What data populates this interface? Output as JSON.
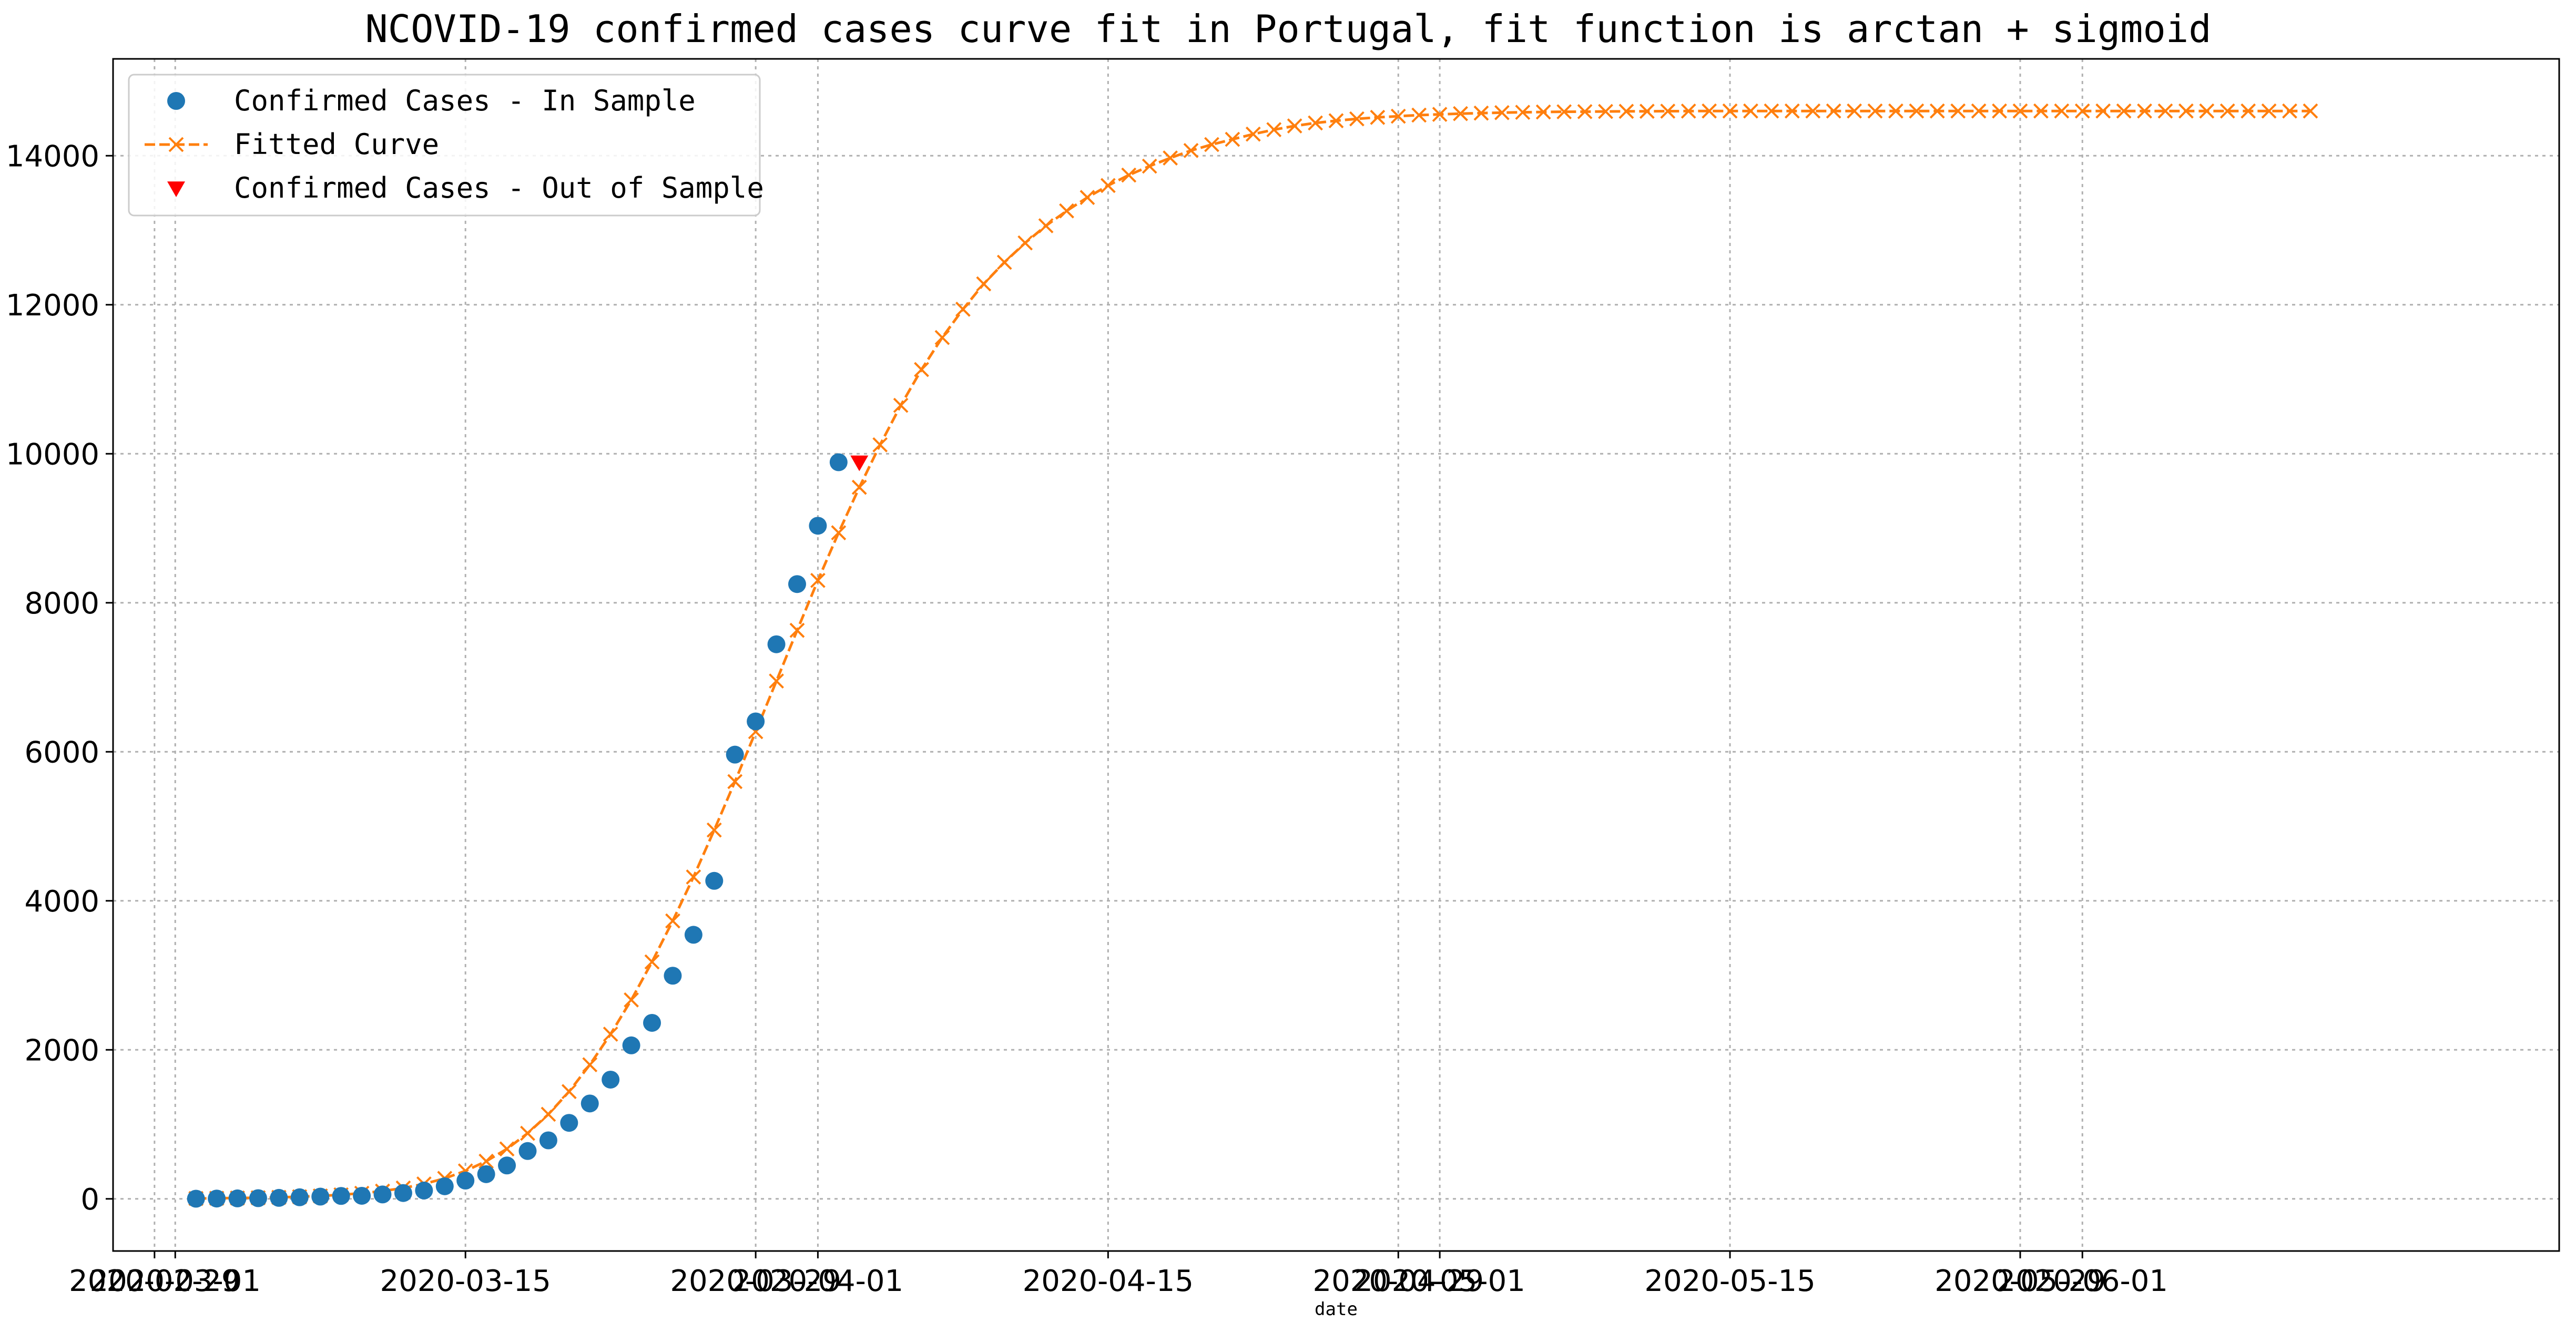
{
  "chart_data": {
    "type": "line",
    "title": "NCOVID-19 confirmed cases curve fit in Portugal, fit function is arctan + sigmoid",
    "xlabel": "date",
    "ylabel": "",
    "xlim": [
      "2020-02-27",
      "2020-06-24"
    ],
    "ylim": [
      -700,
      15300
    ],
    "grid": true,
    "legend_position": "top-left",
    "x_tick_labels": [
      "2020-02-29",
      "2020-03-01",
      "2020-03-15",
      "2020-03-29",
      "2020-04-01",
      "2020-04-15",
      "2020-04-29",
      "2020-05-01",
      "2020-05-15",
      "2020-05-29",
      "2020-06-01"
    ],
    "y_ticks": [
      0,
      2000,
      4000,
      6000,
      8000,
      10000,
      12000,
      14000
    ],
    "colors": {
      "in_sample": "#1f77b4",
      "fitted": "#ff7f0e",
      "out_of_sample": "#ff0000",
      "grid": "#b0b0b0"
    },
    "series": [
      {
        "name": "Confirmed Cases - In Sample",
        "style": "points",
        "start_date": "2020-03-02",
        "values": [
          2,
          4,
          6,
          9,
          13,
          21,
          30,
          39,
          41,
          59,
          78,
          112,
          169,
          245,
          331,
          448,
          642,
          785,
          1020,
          1280,
          1600,
          2060,
          2362,
          2995,
          3544,
          4268,
          5962,
          6408,
          7443,
          8251,
          9034,
          9886
        ]
      },
      {
        "name": "Fitted Curve",
        "style": "dashed-line-x-markers",
        "start_date": "2020-03-02",
        "values": [
          5,
          8,
          11,
          15,
          20,
          28,
          39,
          54,
          75,
          104,
          145,
          200,
          275,
          375,
          505,
          670,
          880,
          1135,
          1440,
          1800,
          2210,
          2670,
          3180,
          3730,
          4320,
          4950,
          5600,
          6270,
          6950,
          7630,
          8300,
          8940,
          9550,
          10120,
          10650,
          11130,
          11560,
          11940,
          12280,
          12570,
          12830,
          13060,
          13260,
          13440,
          13600,
          13740,
          13860,
          13970,
          14070,
          14150,
          14220,
          14290,
          14350,
          14400,
          14440,
          14470,
          14495,
          14515,
          14530,
          14545,
          14555,
          14565,
          14572,
          14578,
          14583,
          14587,
          14590,
          14592,
          14594,
          14596,
          14597,
          14598,
          14599,
          14600,
          14600,
          14600,
          14600,
          14600,
          14600,
          14600,
          14600,
          14600,
          14600,
          14600,
          14600,
          14600,
          14600,
          14600,
          14600,
          14600,
          14600,
          14600,
          14600,
          14600,
          14600,
          14600,
          14600,
          14600,
          14600,
          14600,
          14600,
          14600,
          14600
        ]
      },
      {
        "name": "Confirmed Cases - Out of Sample",
        "style": "triangle-down",
        "x": [
          "2020-04-03"
        ],
        "values": [
          9886
        ]
      }
    ]
  }
}
